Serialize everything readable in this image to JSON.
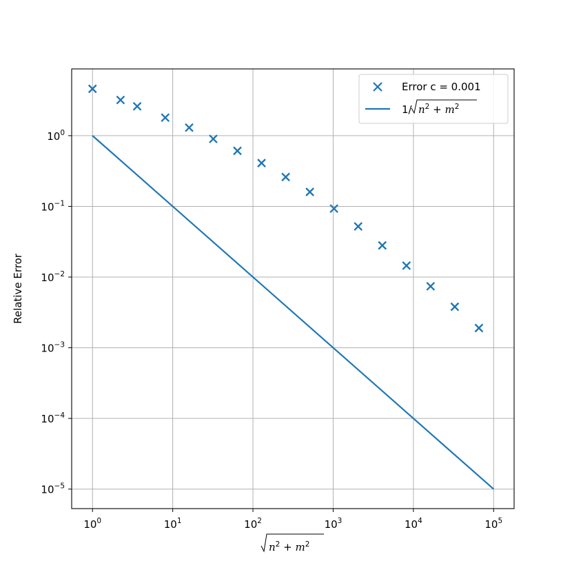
{
  "chart_data": {
    "type": "scatter",
    "xscale": "log",
    "yscale": "log",
    "xlim": [
      0.55,
      180000
    ],
    "ylim": [
      5.3e-06,
      8.8
    ],
    "grid": true,
    "xlabel": "√n² + m²",
    "ylabel": "Relative Error",
    "xticks": [
      {
        "value": 1,
        "base": "10",
        "exp": "0"
      },
      {
        "value": 10,
        "base": "10",
        "exp": "1"
      },
      {
        "value": 100,
        "base": "10",
        "exp": "2"
      },
      {
        "value": 1000,
        "base": "10",
        "exp": "3"
      },
      {
        "value": 10000,
        "base": "10",
        "exp": "4"
      },
      {
        "value": 100000,
        "base": "10",
        "exp": "5"
      }
    ],
    "yticks": [
      {
        "value": 1,
        "base": "10",
        "exp": "0"
      },
      {
        "value": 0.1,
        "base": "10",
        "exp": "−1"
      },
      {
        "value": 0.01,
        "base": "10",
        "exp": "−2"
      },
      {
        "value": 0.001,
        "base": "10",
        "exp": "−3"
      },
      {
        "value": 0.0001,
        "base": "10",
        "exp": "−4"
      },
      {
        "value": 1e-05,
        "base": "10",
        "exp": "−5"
      }
    ],
    "legend_position": "upper right",
    "series": [
      {
        "name": "Error c = 0.001",
        "kind": "scatter",
        "marker": "x",
        "color": "#1f77b4",
        "x": [
          1,
          2.236,
          3.606,
          8.062,
          16.03,
          32.02,
          64.01,
          128.0,
          256.0,
          512.0,
          1024,
          2048,
          4096,
          8192,
          16384,
          32768,
          65536
        ],
        "y": [
          4.6,
          3.2,
          2.6,
          1.8,
          1.3,
          0.9,
          0.61,
          0.41,
          0.26,
          0.16,
          0.093,
          0.052,
          0.028,
          0.0145,
          0.0074,
          0.0038,
          0.0019
        ]
      },
      {
        "name": "1/√n² + m²",
        "kind": "line",
        "color": "#1f77b4",
        "x": [
          1,
          100000
        ],
        "y": [
          1,
          1e-05
        ]
      }
    ]
  }
}
